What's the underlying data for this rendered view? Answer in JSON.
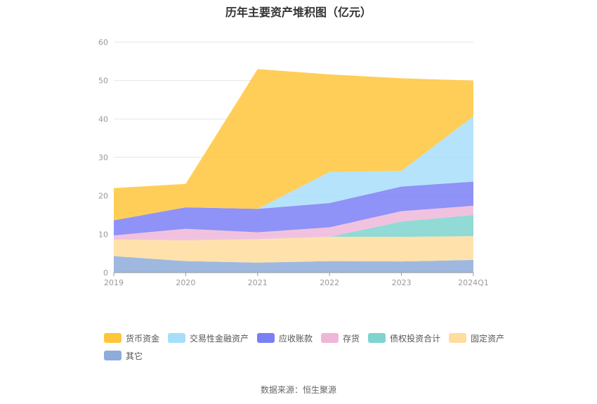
{
  "chart_data": {
    "type": "area",
    "stacked": true,
    "title": "历年主要资产堆积图（亿元）",
    "categories": [
      "2019",
      "2020",
      "2021",
      "2022",
      "2023",
      "2024Q1"
    ],
    "ylim": [
      0,
      60
    ],
    "yticks": [
      0,
      10,
      20,
      30,
      40,
      50,
      60
    ],
    "grid": true,
    "legend_position": "bottom-left",
    "series": [
      {
        "name": "其它",
        "color": "#8EACDA",
        "values": [
          4.3,
          3.0,
          2.6,
          3.0,
          2.9,
          3.3
        ]
      },
      {
        "name": "固定资产",
        "color": "#FFDD9C",
        "values": [
          4.3,
          5.4,
          6.1,
          6.3,
          6.4,
          6.2
        ]
      },
      {
        "name": "债权投资合计",
        "color": "#7FD4CF",
        "values": [
          0.0,
          0.0,
          0.0,
          0.0,
          4.0,
          5.5
        ]
      },
      {
        "name": "存货",
        "color": "#EEB7D9",
        "values": [
          1.1,
          3.0,
          1.8,
          2.5,
          2.7,
          2.4
        ]
      },
      {
        "name": "应收账款",
        "color": "#7B7FF5",
        "values": [
          3.9,
          5.6,
          6.1,
          6.3,
          6.4,
          6.3
        ]
      },
      {
        "name": "交易性金融资产",
        "color": "#A7DEFA",
        "values": [
          0.0,
          0.0,
          0.0,
          8.1,
          4.1,
          17.0
        ]
      },
      {
        "name": "货币资金",
        "color": "#FFC63B",
        "values": [
          8.4,
          6.1,
          36.4,
          25.4,
          24.1,
          9.3
        ]
      }
    ],
    "legend_order": [
      "货币资金",
      "交易性金融资产",
      "应收账款",
      "存货",
      "债权投资合计",
      "固定资产",
      "其它"
    ]
  },
  "footer": {
    "source": "数据来源：恒生聚源"
  }
}
